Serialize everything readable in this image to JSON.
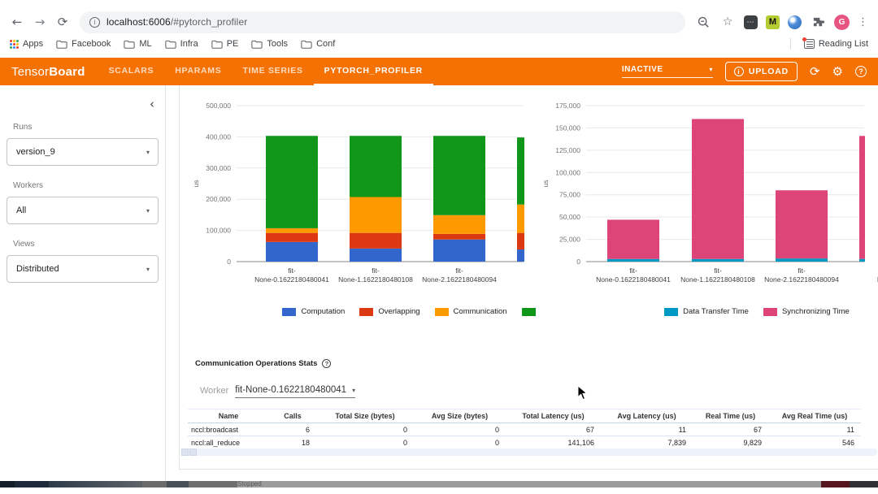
{
  "browser": {
    "url_host": "localhost:6006",
    "url_path": "/#pytorch_profiler",
    "apps_label": "Apps",
    "bookmarks": [
      "Facebook",
      "ML",
      "Infra",
      "PE",
      "Tools",
      "Conf"
    ],
    "reading_list": "Reading List",
    "extension_m_badge": "M",
    "profile_initial": "G"
  },
  "header": {
    "logo_tensor": "Tensor",
    "logo_board": "Board",
    "tabs": [
      {
        "label": "SCALARS",
        "active": false
      },
      {
        "label": "HPARAMS",
        "active": false
      },
      {
        "label": "TIME SERIES",
        "active": false
      },
      {
        "label": "PYTORCH_PROFILER",
        "active": true
      }
    ],
    "status": "INACTIVE",
    "upload_label": "UPLOAD"
  },
  "sidebar": {
    "sections": [
      {
        "name": "runs",
        "label": "Runs",
        "value": "version_9"
      },
      {
        "name": "workers",
        "label": "Workers",
        "value": "All"
      },
      {
        "name": "views",
        "label": "Views",
        "value": "Distributed"
      }
    ]
  },
  "chart_data": [
    {
      "type": "bar",
      "stacked": true,
      "title": "",
      "ylabel": "us",
      "ylim": [
        0,
        500000
      ],
      "ytick_step": 100000,
      "grid": true,
      "legend_position": "bottom",
      "categories": [
        "fit-None-0.1622180480041",
        "fit-None-1.1622180480108",
        "fit-None-2.1622180480094",
        "None"
      ],
      "series": [
        {
          "name": "Computation",
          "color": "#3366cc",
          "values": [
            63000,
            42000,
            71000,
            39000
          ]
        },
        {
          "name": "Overlapping",
          "color": "#dc3912",
          "values": [
            29000,
            50000,
            18000,
            53000
          ]
        },
        {
          "name": "Communication",
          "color": "#ff9900",
          "values": [
            15000,
            115000,
            60000,
            91000
          ]
        },
        {
          "name": "",
          "color": "#109618",
          "values": [
            296000,
            196000,
            254000,
            215000
          ]
        }
      ]
    },
    {
      "type": "bar",
      "stacked": true,
      "title": "",
      "ylabel": "us",
      "ylim": [
        0,
        175000
      ],
      "ytick_step": 25000,
      "grid": true,
      "legend_position": "bottom",
      "categories": [
        "fit-None-0.1622180480041",
        "fit-None-1.1622180480108",
        "fit-None-2.1622180480094",
        "None"
      ],
      "series": [
        {
          "name": "Data Transfer Time",
          "color": "#0099c6",
          "values": [
            3000,
            3000,
            3500,
            3000
          ]
        },
        {
          "name": "Synchronizing Time",
          "color": "#dd4477",
          "values": [
            44000,
            157000,
            76500,
            138000
          ]
        }
      ]
    }
  ],
  "stats": {
    "title": "Communication Operations Stats",
    "worker_label": "Worker",
    "worker_value": "fit-None-0.1622180480041",
    "table": {
      "columns": [
        "Name",
        "Calls",
        "Total Size (bytes)",
        "Avg Size (bytes)",
        "Total Latency (us)",
        "Avg Latency (us)",
        "Real Time (us)",
        "Avg Real Time (us)"
      ],
      "rows": [
        [
          "nccl:broadcast",
          "6",
          "0",
          "0",
          "67",
          "11",
          "67",
          "11"
        ],
        [
          "nccl:all_reduce",
          "18",
          "0",
          "0",
          "141,106",
          "7,839",
          "9,829",
          "546"
        ]
      ]
    }
  },
  "bottom_bar": {
    "label": "Stopped"
  },
  "colors": {
    "header_accent": "#f57102"
  }
}
